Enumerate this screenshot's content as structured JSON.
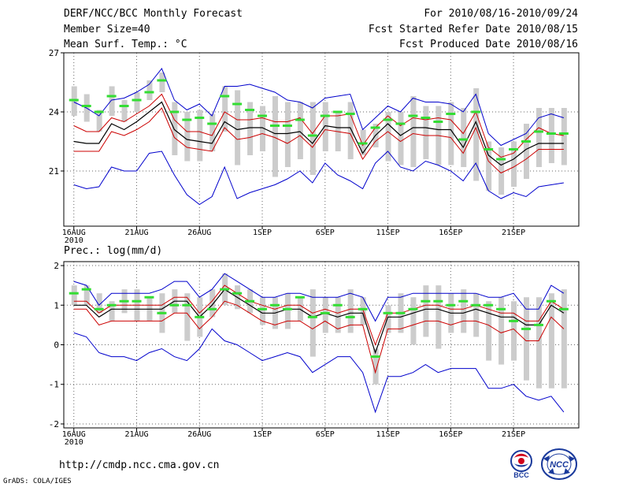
{
  "header": {
    "title": "DERF/NCC/BCC Monthly Forecast",
    "member_size": "Member Size=40",
    "variable": "Mean Surf. Temp.: °C",
    "period": "For 2010/08/16-2010/09/24",
    "fcst_started": "Fcst Started Refer Date 2010/08/15",
    "fcst_produced": "Fcst Produced Date 2010/08/16"
  },
  "footer": {
    "url": "http://cmdp.ncc.cma.gov.cn",
    "grads": "GrADS: COLA/IGES"
  },
  "logos": {
    "bcc_text": "BCC",
    "ncc_text": "NCC"
  },
  "colors": {
    "max_min": "#0000cc",
    "std_band": "#cc0000",
    "mean": "#000000",
    "box": "#cccccc",
    "median": "#33dd33",
    "grid": "#666666"
  },
  "chart_data": [
    {
      "type": "line",
      "title": "Mean Surf. Temp.: °C",
      "x": [
        1,
        2,
        3,
        4,
        5,
        6,
        7,
        8,
        9,
        10,
        11,
        12,
        13,
        14,
        15,
        16,
        17,
        18,
        19,
        20,
        21,
        22,
        23,
        24,
        25,
        26,
        27,
        28,
        29,
        30,
        31,
        32,
        33,
        34,
        35,
        36,
        37,
        38,
        39,
        40
      ],
      "xlim": [
        0.2,
        41.2
      ],
      "ylim": [
        18.2,
        27
      ],
      "yticks": [
        21,
        24,
        27
      ],
      "xticks": [
        {
          "x": 1,
          "label": "16AUG",
          "sub": "2010"
        },
        {
          "x": 6,
          "label": "21AUG"
        },
        {
          "x": 11,
          "label": "26AUG"
        },
        {
          "x": 16,
          "label": "1SEP"
        },
        {
          "x": 21,
          "label": "6SEP"
        },
        {
          "x": 26,
          "label": "11SEP"
        },
        {
          "x": 31,
          "label": "16SEP"
        },
        {
          "x": 36,
          "label": "21SEP"
        }
      ],
      "series": [
        {
          "name": "max",
          "values": [
            24.5,
            24.2,
            23.8,
            24.6,
            24.7,
            25.0,
            25.4,
            26.2,
            24.6,
            24.1,
            24.4,
            23.8,
            25.3,
            25.3,
            25.4,
            25.2,
            25.0,
            24.6,
            24.5,
            24.2,
            24.7,
            24.8,
            24.9,
            23.1,
            23.7,
            24.3,
            24.0,
            24.7,
            24.5,
            24.5,
            24.4,
            24.0,
            24.9,
            22.9,
            22.3,
            22.6,
            22.9,
            23.7,
            23.9,
            23.7
          ]
        },
        {
          "name": "upper",
          "values": [
            23.3,
            23.0,
            23.0,
            23.7,
            23.5,
            23.9,
            24.3,
            24.9,
            23.6,
            23.0,
            23.0,
            22.8,
            24.0,
            23.6,
            23.6,
            23.7,
            23.5,
            23.5,
            23.7,
            22.9,
            23.8,
            23.8,
            23.9,
            22.3,
            23.2,
            23.8,
            23.3,
            23.7,
            23.6,
            23.7,
            23.6,
            22.9,
            24.0,
            22.2,
            21.7,
            21.9,
            22.6,
            23.2,
            22.9,
            22.8
          ]
        },
        {
          "name": "mean",
          "values": [
            22.5,
            22.4,
            22.4,
            23.4,
            23.1,
            23.5,
            24.0,
            24.5,
            23.1,
            22.6,
            22.5,
            22.4,
            23.5,
            23.1,
            23.2,
            23.2,
            22.9,
            22.9,
            23.0,
            22.4,
            23.3,
            23.2,
            23.2,
            21.9,
            22.8,
            23.4,
            22.8,
            23.2,
            23.2,
            23.1,
            23.1,
            22.2,
            23.5,
            21.8,
            21.3,
            21.6,
            22.1,
            22.4,
            22.4,
            22.4
          ]
        },
        {
          "name": "lower",
          "values": [
            22.0,
            22.0,
            22.0,
            23.0,
            22.8,
            23.1,
            23.5,
            24.2,
            22.7,
            22.2,
            22.1,
            22.0,
            23.2,
            22.6,
            22.7,
            22.9,
            22.7,
            22.4,
            22.8,
            22.2,
            23.1,
            23.0,
            22.9,
            21.6,
            22.5,
            23.0,
            22.5,
            22.9,
            22.8,
            22.8,
            22.7,
            21.9,
            23.2,
            21.5,
            20.9,
            21.2,
            21.6,
            22.1,
            22.1,
            22.1
          ]
        },
        {
          "name": "min",
          "values": [
            20.3,
            20.1,
            20.2,
            21.2,
            21.0,
            21.0,
            21.9,
            22.0,
            20.8,
            19.8,
            19.3,
            19.7,
            21.2,
            19.6,
            19.9,
            20.1,
            20.3,
            20.6,
            21.0,
            20.4,
            21.4,
            20.8,
            20.5,
            20.1,
            21.4,
            22.0,
            21.2,
            21.0,
            21.5,
            21.3,
            21.0,
            20.5,
            21.4,
            20.0,
            19.6,
            19.9,
            19.7,
            20.2,
            20.3,
            20.4
          ]
        },
        {
          "name": "box_high",
          "values": [
            25.3,
            24.9,
            24.1,
            25.3,
            24.6,
            25.0,
            25.6,
            26.0,
            24.5,
            24.0,
            24.1,
            23.9,
            25.3,
            25.1,
            24.5,
            24.3,
            24.8,
            24.5,
            24.5,
            24.5,
            24.5,
            24.0,
            24.5,
            23.1,
            23.4,
            24.0,
            24.0,
            24.8,
            24.3,
            24.3,
            24.5,
            24.2,
            25.2,
            22.5,
            22.2,
            22.5,
            23.4,
            24.2,
            24.2,
            24.2
          ]
        },
        {
          "name": "box_low",
          "values": [
            23.8,
            23.5,
            23.0,
            23.8,
            23.5,
            24.0,
            24.6,
            25.0,
            21.8,
            21.5,
            21.5,
            22.0,
            23.0,
            21.3,
            21.8,
            22.0,
            20.7,
            21.2,
            21.6,
            20.8,
            22.0,
            22.0,
            21.6,
            21.8,
            22.2,
            21.5,
            21.3,
            21.2,
            21.6,
            21.3,
            21.3,
            21.2,
            20.5,
            20.0,
            19.8,
            20.2,
            20.6,
            21.2,
            21.4,
            21.3
          ]
        },
        {
          "name": "median",
          "values": [
            24.6,
            24.3,
            24.0,
            24.8,
            24.3,
            24.6,
            25.0,
            25.6,
            24.0,
            23.6,
            23.7,
            23.4,
            24.8,
            24.4,
            24.1,
            23.8,
            23.3,
            23.3,
            23.6,
            22.8,
            23.8,
            24.0,
            23.9,
            22.4,
            23.2,
            23.6,
            23.4,
            23.8,
            23.7,
            23.5,
            23.9,
            22.6,
            24.0,
            22.1,
            21.6,
            22.1,
            22.5,
            23.0,
            22.9,
            22.9
          ]
        }
      ]
    },
    {
      "type": "line",
      "title": "Prec.: log(mm/d)",
      "x": [
        1,
        2,
        3,
        4,
        5,
        6,
        7,
        8,
        9,
        10,
        11,
        12,
        13,
        14,
        15,
        16,
        17,
        18,
        19,
        20,
        21,
        22,
        23,
        24,
        25,
        26,
        27,
        28,
        29,
        30,
        31,
        32,
        33,
        34,
        35,
        36,
        37,
        38,
        39,
        40
      ],
      "xlim": [
        0.2,
        41.2
      ],
      "ylim": [
        -2.1,
        2.1
      ],
      "yticks": [
        -2,
        -1,
        0,
        1,
        2
      ],
      "xticks": [
        {
          "x": 1,
          "label": "16AUG",
          "sub": "2010"
        },
        {
          "x": 6,
          "label": "21AUG"
        },
        {
          "x": 11,
          "label": "26AUG"
        },
        {
          "x": 16,
          "label": "1SEP"
        },
        {
          "x": 21,
          "label": "6SEP"
        },
        {
          "x": 26,
          "label": "11SEP"
        },
        {
          "x": 31,
          "label": "16SEP"
        },
        {
          "x": 36,
          "label": "21SEP"
        }
      ],
      "series": [
        {
          "name": "max",
          "values": [
            1.6,
            1.5,
            1.0,
            1.3,
            1.3,
            1.3,
            1.3,
            1.4,
            1.6,
            1.6,
            1.2,
            1.4,
            1.8,
            1.6,
            1.4,
            1.2,
            1.2,
            1.3,
            1.3,
            1.2,
            1.2,
            1.2,
            1.3,
            1.2,
            0.6,
            1.2,
            1.2,
            1.3,
            1.3,
            1.3,
            1.3,
            1.3,
            1.3,
            1.2,
            1.2,
            1.3,
            0.9,
            0.9,
            1.5,
            1.3
          ]
        },
        {
          "name": "upper",
          "values": [
            1.1,
            1.1,
            0.8,
            1.0,
            1.0,
            1.0,
            1.0,
            1.0,
            1.2,
            1.2,
            0.8,
            1.1,
            1.5,
            1.3,
            1.1,
            1.0,
            0.9,
            1.0,
            1.0,
            0.8,
            0.9,
            0.8,
            0.9,
            0.9,
            0.0,
            0.8,
            0.8,
            0.9,
            1.0,
            1.0,
            0.9,
            0.9,
            1.0,
            0.9,
            0.8,
            0.8,
            0.6,
            0.6,
            1.1,
            0.9
          ]
        },
        {
          "name": "mean",
          "values": [
            1.0,
            1.0,
            0.7,
            0.9,
            0.9,
            0.9,
            0.9,
            0.9,
            1.1,
            1.1,
            0.7,
            1.0,
            1.4,
            1.2,
            1.0,
            0.8,
            0.8,
            0.9,
            0.9,
            0.7,
            0.8,
            0.7,
            0.8,
            0.8,
            -0.2,
            0.7,
            0.7,
            0.8,
            0.9,
            0.9,
            0.8,
            0.8,
            0.9,
            0.8,
            0.7,
            0.7,
            0.5,
            0.5,
            1.0,
            0.8
          ]
        },
        {
          "name": "lower",
          "values": [
            0.9,
            0.9,
            0.5,
            0.6,
            0.6,
            0.6,
            0.6,
            0.6,
            0.8,
            0.8,
            0.4,
            0.7,
            1.1,
            1.0,
            0.8,
            0.6,
            0.5,
            0.6,
            0.6,
            0.4,
            0.6,
            0.4,
            0.5,
            0.5,
            -0.7,
            0.4,
            0.4,
            0.5,
            0.6,
            0.6,
            0.5,
            0.6,
            0.6,
            0.5,
            0.3,
            0.4,
            0.1,
            0.1,
            0.7,
            0.4
          ]
        },
        {
          "name": "min",
          "values": [
            0.3,
            0.2,
            -0.2,
            -0.3,
            -0.3,
            -0.4,
            -0.2,
            -0.1,
            -0.3,
            -0.4,
            -0.1,
            0.4,
            0.1,
            0.0,
            -0.2,
            -0.4,
            -0.3,
            -0.2,
            -0.3,
            -0.7,
            -0.5,
            -0.3,
            -0.3,
            -0.7,
            -1.7,
            -0.8,
            -0.8,
            -0.7,
            -0.5,
            -0.7,
            -0.6,
            -0.6,
            -0.6,
            -1.1,
            -1.1,
            -1.0,
            -1.3,
            -1.4,
            -1.3,
            -1.7
          ]
        },
        {
          "name": "box_high",
          "values": [
            1.5,
            1.5,
            1.3,
            1.1,
            1.4,
            1.4,
            1.2,
            1.3,
            1.4,
            1.3,
            1.2,
            1.4,
            1.8,
            1.5,
            1.4,
            1.2,
            1.2,
            1.3,
            1.2,
            1.4,
            1.2,
            1.2,
            1.4,
            1.2,
            -0.1,
            1.0,
            1.3,
            1.2,
            1.5,
            1.5,
            1.3,
            1.4,
            1.3,
            1.1,
            1.2,
            1.1,
            1.2,
            1.2,
            1.3,
            1.4
          ]
        },
        {
          "name": "box_low",
          "values": [
            1.0,
            1.0,
            0.8,
            0.6,
            0.8,
            0.6,
            0.6,
            0.3,
            0.8,
            0.1,
            0.2,
            0.7,
            1.0,
            0.9,
            0.8,
            0.5,
            0.4,
            0.4,
            0.6,
            -0.3,
            0.3,
            0.3,
            0.3,
            0.5,
            -1.0,
            0.3,
            0.3,
            0.0,
            0.2,
            -0.1,
            0.3,
            0.3,
            0.2,
            -0.4,
            -0.5,
            -0.4,
            -0.9,
            -1.1,
            -1.1,
            -1.1
          ]
        },
        {
          "name": "median",
          "values": [
            1.3,
            1.4,
            0.9,
            1.0,
            1.1,
            1.1,
            1.2,
            0.8,
            1.0,
            1.0,
            0.7,
            0.9,
            1.4,
            1.3,
            1.1,
            0.9,
            1.0,
            0.9,
            1.2,
            0.7,
            0.8,
            1.0,
            0.7,
            0.9,
            -0.3,
            0.8,
            0.8,
            0.9,
            1.1,
            1.1,
            1.0,
            1.1,
            1.0,
            1.0,
            0.9,
            0.6,
            0.4,
            0.5,
            1.1,
            0.9
          ]
        }
      ]
    }
  ]
}
